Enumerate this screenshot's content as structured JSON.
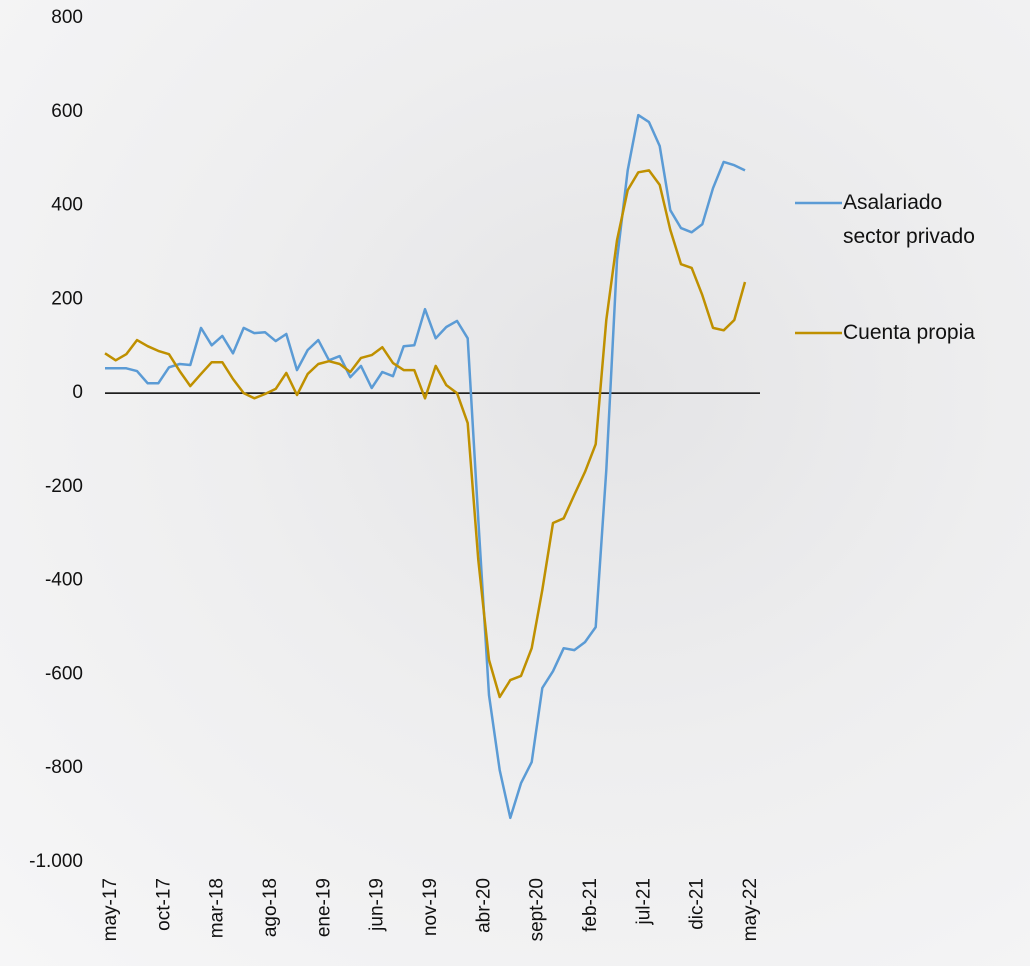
{
  "chart_data": {
    "type": "line",
    "categories": [
      "may-17",
      null,
      null,
      null,
      null,
      "oct-17",
      null,
      null,
      null,
      null,
      "mar-18",
      null,
      null,
      null,
      null,
      "ago-18",
      null,
      null,
      null,
      null,
      "ene-19",
      null,
      null,
      null,
      null,
      "jun-19",
      null,
      null,
      null,
      null,
      "nov-19",
      null,
      null,
      null,
      null,
      "abr-20",
      null,
      null,
      null,
      null,
      "sept-20",
      null,
      null,
      null,
      null,
      "feb-21",
      null,
      null,
      null,
      null,
      "jul-21",
      null,
      null,
      null,
      null,
      "dic-21",
      null,
      null,
      null,
      null,
      "may-22"
    ],
    "series": [
      {
        "name": "Asalariado sector privado",
        "color": "#5b9bd5",
        "values": [
          53,
          53,
          53,
          47,
          21,
          21,
          55,
          62,
          60,
          139,
          102,
          122,
          85,
          139,
          128,
          130,
          111,
          126,
          49,
          92,
          113,
          70,
          79,
          34,
          58,
          11,
          45,
          36,
          100,
          102,
          179,
          117,
          141,
          154,
          117,
          -270,
          -644,
          -804,
          -906,
          -832,
          -787,
          -629,
          -593,
          -544,
          -548,
          -531,
          -499,
          -164,
          284,
          475,
          593,
          578,
          527,
          390,
          352,
          343,
          360,
          437,
          493,
          486,
          475
        ]
      },
      {
        "name": "Cuenta propia",
        "color": "#bf9000",
        "values": [
          85,
          70,
          83,
          113,
          100,
          90,
          83,
          47,
          15,
          41,
          66,
          66,
          30,
          0,
          -11,
          -2,
          9,
          43,
          -4,
          41,
          62,
          68,
          62,
          45,
          75,
          81,
          98,
          64,
          49,
          49,
          -11,
          58,
          17,
          0,
          -64,
          -356,
          -569,
          -648,
          -612,
          -603,
          -544,
          -420,
          -277,
          -267,
          -217,
          -168,
          -109,
          156,
          326,
          433,
          471,
          475,
          444,
          348,
          275,
          267,
          209,
          139,
          134,
          156,
          237
        ]
      }
    ],
    "ylim": [
      -1000,
      800
    ],
    "yticks": [
      {
        "value": -1000,
        "label": "-1.000"
      },
      -800,
      -600,
      -400,
      -200,
      0,
      200,
      400,
      600,
      800
    ],
    "grid": false
  }
}
